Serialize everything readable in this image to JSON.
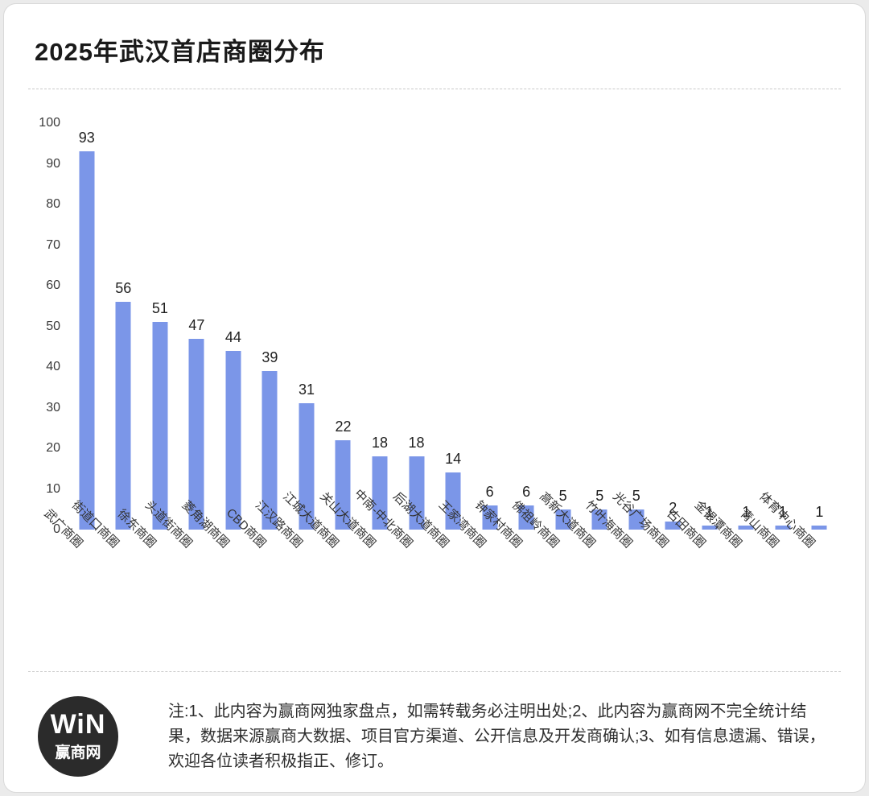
{
  "page": {
    "title": "2025年武汉首店商圈分布"
  },
  "chart_data": {
    "type": "bar",
    "title": "2025年武汉首店商圈分布",
    "categories": [
      "武广商圈",
      "街道口商圈",
      "徐东商圈",
      "头道街商圈",
      "菱角湖商圈",
      "CBD商圈",
      "江汉路商圈",
      "江城大道商圈",
      "关山大道商圈",
      "中南-中北商圈",
      "后湖大道商圈",
      "王家湾商圈",
      "钟家村商圈",
      "佛祖岭商圈",
      "高新大道商圈",
      "竹叶海商圈",
      "光谷广场商圈",
      "古田商圈",
      "金银潭商圈",
      "青山商圈",
      "体育中心商圈"
    ],
    "values": [
      93,
      56,
      51,
      47,
      44,
      39,
      31,
      22,
      18,
      18,
      14,
      6,
      6,
      5,
      5,
      5,
      2,
      1,
      1,
      1,
      1
    ],
    "xlabel": "",
    "ylabel": "",
    "ylim": [
      0,
      100
    ],
    "ytick_step": 10,
    "bar_color": "#7B96E8",
    "grid": false,
    "legend": "none",
    "xlabel_rotation_deg": 45
  },
  "footer": {
    "logo_win": "WiN",
    "logo_name": "赢商网",
    "note": "注:1、此内容为赢商网独家盘点，如需转载务必注明出处;2、此内容为赢商网不完全统计结果，数据来源赢商大数据、项目官方渠道、公开信息及开发商确认;3、如有信息遗漏、错误，欢迎各位读者积极指正、修订。"
  }
}
